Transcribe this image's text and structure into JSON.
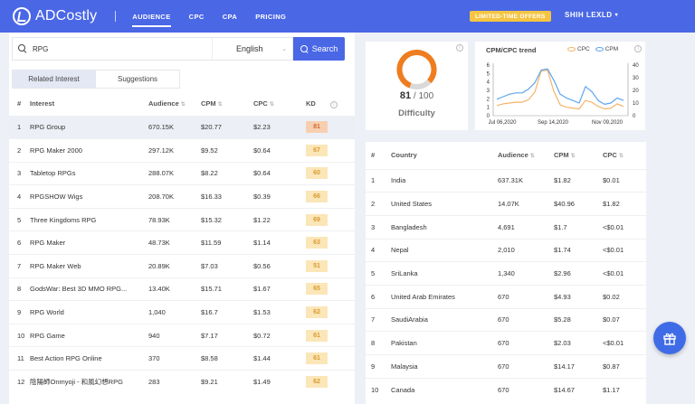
{
  "brand": {
    "name": "ADCostly"
  },
  "nav": {
    "items": [
      {
        "label": "AUDIENCE",
        "active": true
      },
      {
        "label": "CPC",
        "active": false
      },
      {
        "label": "CPA",
        "active": false
      },
      {
        "label": "PRICING",
        "active": false
      }
    ],
    "offer_badge": "LIMITED-TIME OFFERS",
    "user_label": "SHIH LEXLD"
  },
  "search": {
    "value": "RPG",
    "language": "English",
    "button_label": "Search"
  },
  "tabs": [
    {
      "label": "Related Interest"
    },
    {
      "label": "Suggestions"
    }
  ],
  "interest_table": {
    "columns": [
      "#",
      "Interest",
      "Audience",
      "CPM",
      "CPC",
      "KD"
    ],
    "rows": [
      {
        "n": "1",
        "interest": "RPG Group",
        "audience": "670.15K",
        "cpm": "$20.77",
        "cpc": "$2.23",
        "kd": "81"
      },
      {
        "n": "2",
        "interest": "RPG Maker 2000",
        "audience": "297.12K",
        "cpm": "$9.52",
        "cpc": "$0.64",
        "kd": "67"
      },
      {
        "n": "3",
        "interest": "Tabletop RPGs",
        "audience": "288.07K",
        "cpm": "$8.22",
        "cpc": "$0.64",
        "kd": "60"
      },
      {
        "n": "4",
        "interest": "RPGSHOW Wigs",
        "audience": "208.70K",
        "cpm": "$16.33",
        "cpc": "$0.39",
        "kd": "66"
      },
      {
        "n": "5",
        "interest": "Three Kingdoms RPG",
        "audience": "78.93K",
        "cpm": "$15.32",
        "cpc": "$1.22",
        "kd": "69"
      },
      {
        "n": "6",
        "interest": "RPG Maker",
        "audience": "48.73K",
        "cpm": "$11.59",
        "cpc": "$1.14",
        "kd": "63"
      },
      {
        "n": "7",
        "interest": "RPG Maker Web",
        "audience": "20.89K",
        "cpm": "$7.03",
        "cpc": "$0.56",
        "kd": "51"
      },
      {
        "n": "8",
        "interest": "GodsWar: Best 3D MMO RPG...",
        "audience": "13.40K",
        "cpm": "$15.71",
        "cpc": "$1.67",
        "kd": "65"
      },
      {
        "n": "9",
        "interest": "RPG World",
        "audience": "1,040",
        "cpm": "$16.7",
        "cpc": "$1.53",
        "kd": "62"
      },
      {
        "n": "10",
        "interest": "RPG Game",
        "audience": "940",
        "cpm": "$7.17",
        "cpc": "$0.72",
        "kd": "61"
      },
      {
        "n": "11",
        "interest": "Best Action RPG Online",
        "audience": "370",
        "cpm": "$8.58",
        "cpc": "$1.44",
        "kd": "61"
      },
      {
        "n": "12",
        "interest": "陰陽師Onmyoji - 和風幻想RPG",
        "audience": "283",
        "cpm": "$9.21",
        "cpc": "$1.49",
        "kd": "62"
      }
    ]
  },
  "difficulty": {
    "value": 81,
    "max": "100",
    "value_label": "81",
    "max_label": "/ 100",
    "label": "Difficulty"
  },
  "trend": {
    "title": "CPM/CPC trend",
    "legend": [
      {
        "name": "CPC",
        "color": "#f5b36a"
      },
      {
        "name": "CPM",
        "color": "#5da6f0"
      }
    ]
  },
  "chart_data": {
    "type": "line",
    "title": "CPM/CPC trend",
    "x_ticks": [
      "Jul 06,2020",
      "Sep 14,2020",
      "Nov 09,2020"
    ],
    "left_axis": {
      "ticks": [
        "0",
        "1",
        "2",
        "3",
        "4",
        "5",
        "6"
      ],
      "range": [
        0,
        6
      ]
    },
    "right_axis": {
      "ticks": [
        "0",
        "10",
        "20",
        "30",
        "40"
      ],
      "range": [
        0,
        40
      ]
    },
    "series": [
      {
        "name": "CPC",
        "axis": "left",
        "color": "#f5b36a",
        "values": [
          1.2,
          1.4,
          1.5,
          1.6,
          1.6,
          1.9,
          2.8,
          5.3,
          5.4,
          2.9,
          1.3,
          1.0,
          0.9,
          0.8,
          1.8,
          1.6,
          1.1,
          0.8,
          0.9,
          1.4,
          1.1
        ]
      },
      {
        "name": "CPM",
        "axis": "right",
        "color": "#5da6f0",
        "values": [
          13,
          15,
          17,
          18,
          18,
          21,
          26,
          36,
          37,
          28,
          17,
          14,
          12,
          10,
          23,
          19,
          12,
          9,
          10,
          14,
          12
        ]
      }
    ]
  },
  "country_table": {
    "columns": [
      "#",
      "Country",
      "Audience",
      "CPM",
      "CPC"
    ],
    "rows": [
      {
        "n": "1",
        "country": "India",
        "audience": "637.31K",
        "cpm": "$1.82",
        "cpc": "$0.01"
      },
      {
        "n": "2",
        "country": "United States",
        "audience": "14.07K",
        "cpm": "$40.96",
        "cpc": "$1.82"
      },
      {
        "n": "3",
        "country": "Bangladesh",
        "audience": "4,691",
        "cpm": "$1.7",
        "cpc": "<$0.01"
      },
      {
        "n": "4",
        "country": "Nepal",
        "audience": "2,010",
        "cpm": "$1.74",
        "cpc": "<$0.01"
      },
      {
        "n": "5",
        "country": "SriLanka",
        "audience": "1,340",
        "cpm": "$2.96",
        "cpc": "<$0.01"
      },
      {
        "n": "6",
        "country": "United Arab Emirates",
        "audience": "670",
        "cpm": "$4.93",
        "cpc": "$0.02"
      },
      {
        "n": "7",
        "country": "SaudiArabia",
        "audience": "670",
        "cpm": "$5.28",
        "cpc": "$0.07"
      },
      {
        "n": "8",
        "country": "Pakistan",
        "audience": "670",
        "cpm": "$2.03",
        "cpc": "<$0.01"
      },
      {
        "n": "9",
        "country": "Malaysia",
        "audience": "670",
        "cpm": "$14.17",
        "cpc": "$0.87"
      },
      {
        "n": "10",
        "country": "Canada",
        "audience": "670",
        "cpm": "$14.67",
        "cpc": "$1.17"
      }
    ]
  },
  "colors": {
    "brand": "#4a67e6",
    "offer": "#f5c442",
    "kd_medium_bg": "#fbe6b8",
    "kd_hard_bg": "#f7cfb0"
  },
  "icons": {
    "search": "search-icon",
    "gift": "gift-icon",
    "info": "info-icon"
  }
}
